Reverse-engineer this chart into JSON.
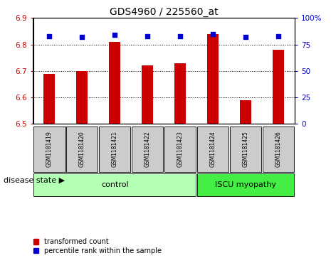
{
  "title": "GDS4960 / 225560_at",
  "samples": [
    "GSM1181419",
    "GSM1181420",
    "GSM1181421",
    "GSM1181422",
    "GSM1181423",
    "GSM1181424",
    "GSM1181425",
    "GSM1181426"
  ],
  "transformed_count": [
    6.69,
    6.7,
    6.81,
    6.72,
    6.73,
    6.84,
    6.59,
    6.78
  ],
  "percentile_rank": [
    83,
    82,
    84,
    83,
    83,
    85,
    82,
    83
  ],
  "ylim_left": [
    6.5,
    6.9
  ],
  "ylim_right": [
    0,
    100
  ],
  "yticks_left": [
    6.5,
    6.6,
    6.7,
    6.8,
    6.9
  ],
  "yticks_right": [
    0,
    25,
    50,
    75,
    100
  ],
  "bar_color": "#cc0000",
  "dot_color": "#0000cc",
  "bar_width": 0.35,
  "groups": [
    {
      "label": "control",
      "indices": [
        0,
        1,
        2,
        3,
        4
      ],
      "color": "#b3ffb3"
    },
    {
      "label": "ISCU myopathy",
      "indices": [
        5,
        6,
        7
      ],
      "color": "#44ee44"
    }
  ],
  "disease_state_label": "disease state",
  "legend_bar_label": "transformed count",
  "legend_dot_label": "percentile rank within the sample",
  "title_fontsize": 10,
  "tick_fontsize": 7.5,
  "label_fontsize": 8,
  "legend_fontsize": 7,
  "background_color": "#ffffff",
  "plot_bg_color": "#ffffff",
  "tick_color_left": "#cc0000",
  "tick_color_right": "#0000cc",
  "sample_box_color": "#cccccc",
  "baseline": 6.5
}
